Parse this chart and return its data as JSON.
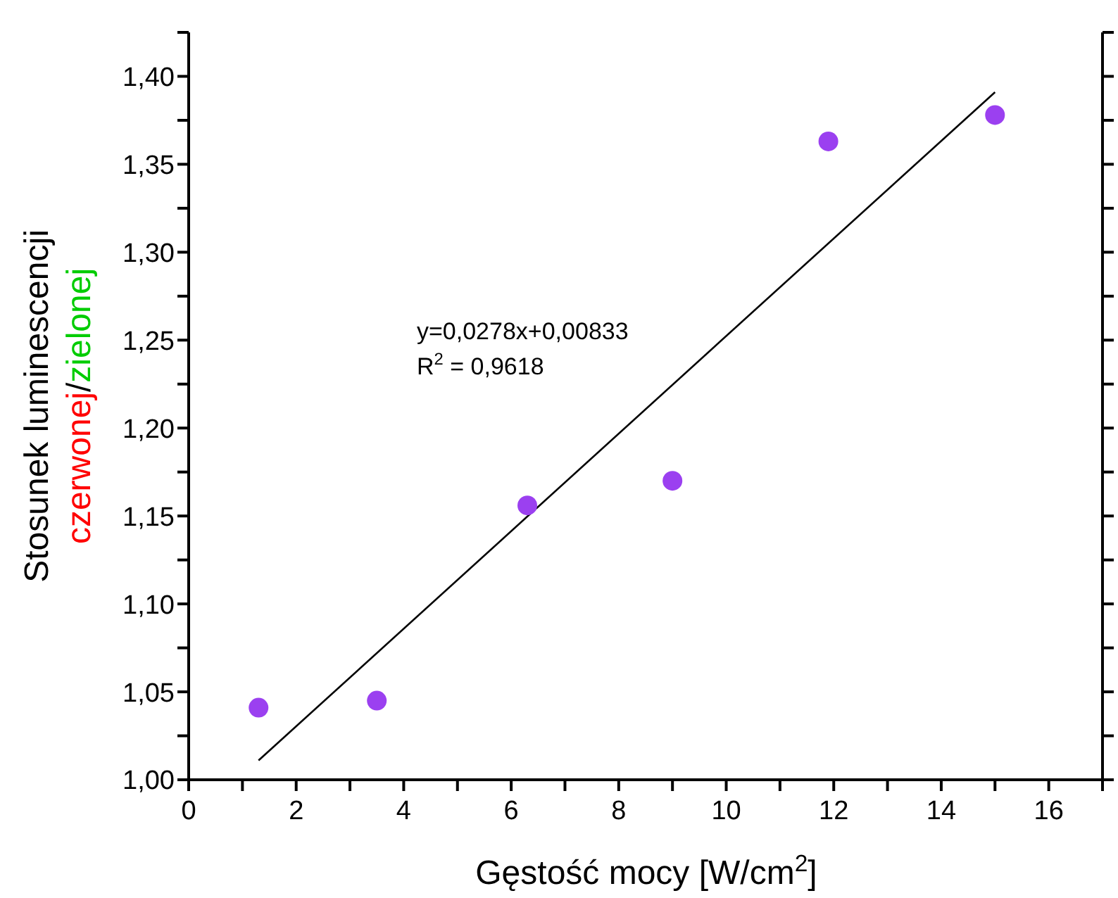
{
  "chart_data": {
    "type": "scatter",
    "xlabel": "Gęstość mocy [W/cm$^{2}$]",
    "ylabel": "Stosunek luminescencji czerwonej/zielonej",
    "xlim": [
      0,
      17
    ],
    "ylim": [
      1,
      1.425
    ],
    "xticks": [
      0,
      {
        "value": 1,
        "label": null
      },
      2,
      {
        "value": 3,
        "label": null
      },
      4,
      {
        "value": 5,
        "label": null
      },
      6,
      {
        "value": 7,
        "label": null
      },
      8,
      {
        "value": 9,
        "label": null
      },
      10,
      {
        "value": 11,
        "label": null
      },
      12,
      {
        "value": 13,
        "label": null
      },
      14,
      {
        "value": 15,
        "label": null
      },
      16,
      {
        "value": 17,
        "label": null
      }
    ],
    "yticks": [
      {
        "value": 1,
        "label": "1,00"
      },
      {
        "value": 1.025,
        "label": null
      },
      {
        "value": 1.05,
        "label": "1,05"
      },
      {
        "value": 1.075,
        "label": null
      },
      {
        "value": 1.1,
        "label": "1,10"
      },
      {
        "value": 1.125,
        "label": null
      },
      {
        "value": 1.15,
        "label": "1,15"
      },
      {
        "value": 1.175,
        "label": null
      },
      {
        "value": 1.2,
        "label": "1,20"
      },
      {
        "value": 1.225,
        "label": null
      },
      {
        "value": 1.25,
        "label": "1,25"
      },
      {
        "value": 1.275,
        "label": null
      },
      {
        "value": 1.3,
        "label": "1,30"
      },
      {
        "value": 1.325,
        "label": null
      },
      {
        "value": 1.35,
        "label": "1,35"
      },
      {
        "value": 1.375,
        "label": null
      },
      {
        "value": 1.4,
        "label": "1,40"
      },
      {
        "value": 1.425,
        "label": null
      }
    ],
    "series": [
      {
        "marker": "circle",
        "color": "#9b40f0",
        "x": [
          1.3,
          3.5,
          6.3,
          9.0,
          11.9,
          15.0
        ],
        "values": [
          1.041,
          1.045,
          1.156,
          1.17,
          1.363,
          1.378
        ]
      },
      {
        "type": "line",
        "color": "#000000",
        "line_style": "solid",
        "x": [
          1.3,
          15.0
        ],
        "values": [
          1.011,
          1.391
        ]
      }
    ],
    "annotations": [
      "y=0,0278x+0,00833",
      "R$^{2}$ = 0,9618"
    ]
  }
}
